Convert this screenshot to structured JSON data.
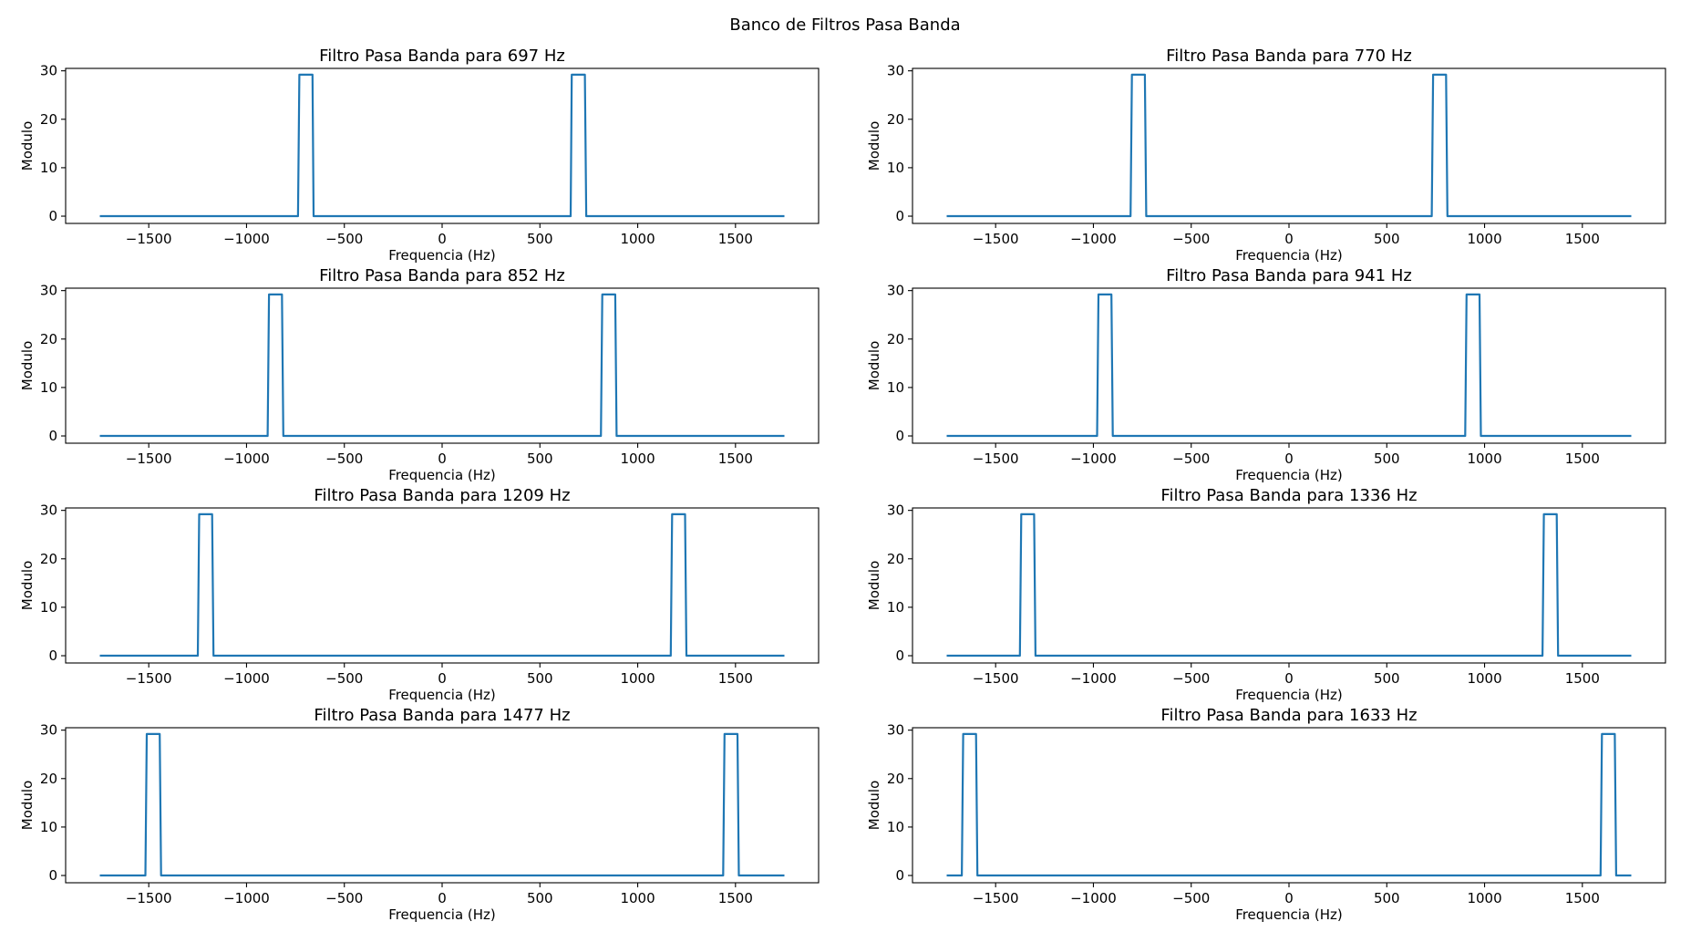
{
  "figure": {
    "suptitle": "Banco de Filtros Pasa Banda",
    "line_color": "#1f77b4"
  },
  "chart_data": [
    {
      "type": "line",
      "title": "Filtro Pasa Banda para 697 Hz",
      "xlabel": "Frequencia (Hz)",
      "ylabel": "Modulo",
      "xlim": [
        -1925,
        1925
      ],
      "ylim": [
        -1.5,
        30.5
      ],
      "xticks": [
        -1500,
        -1000,
        -500,
        0,
        500,
        1000,
        1500
      ],
      "yticks": [
        0,
        10,
        20,
        30
      ],
      "grid": false,
      "x": [
        -1750,
        -737,
        -730,
        -663,
        -657,
        657,
        663,
        730,
        737,
        1750
      ],
      "y": [
        0,
        0,
        29.2,
        29.2,
        0,
        0,
        29.2,
        29.2,
        0,
        0
      ]
    },
    {
      "type": "line",
      "title": "Filtro Pasa Banda para 770 Hz",
      "xlabel": "Frequencia (Hz)",
      "ylabel": "Modulo",
      "xlim": [
        -1925,
        1925
      ],
      "ylim": [
        -1.5,
        30.5
      ],
      "xticks": [
        -1500,
        -1000,
        -500,
        0,
        500,
        1000,
        1500
      ],
      "yticks": [
        0,
        10,
        20,
        30
      ],
      "grid": false,
      "x": [
        -1750,
        -810,
        -803,
        -737,
        -730,
        730,
        737,
        803,
        810,
        1750
      ],
      "y": [
        0,
        0,
        29.2,
        29.2,
        0,
        0,
        29.2,
        29.2,
        0,
        0
      ]
    },
    {
      "type": "line",
      "title": "Filtro Pasa Banda para 852 Hz",
      "xlabel": "Frequencia (Hz)",
      "ylabel": "Modulo",
      "xlim": [
        -1925,
        1925
      ],
      "ylim": [
        -1.5,
        30.5
      ],
      "xticks": [
        -1500,
        -1000,
        -500,
        0,
        500,
        1000,
        1500
      ],
      "yticks": [
        0,
        10,
        20,
        30
      ],
      "grid": false,
      "x": [
        -1750,
        -892,
        -885,
        -819,
        -812,
        812,
        819,
        885,
        892,
        1750
      ],
      "y": [
        0,
        0,
        29.2,
        29.2,
        0,
        0,
        29.2,
        29.2,
        0,
        0
      ]
    },
    {
      "type": "line",
      "title": "Filtro Pasa Banda para 941 Hz",
      "xlabel": "Frequencia (Hz)",
      "ylabel": "Modulo",
      "xlim": [
        -1925,
        1925
      ],
      "ylim": [
        -1.5,
        30.5
      ],
      "xticks": [
        -1500,
        -1000,
        -500,
        0,
        500,
        1000,
        1500
      ],
      "yticks": [
        0,
        10,
        20,
        30
      ],
      "grid": false,
      "x": [
        -1750,
        -981,
        -974,
        -908,
        -901,
        901,
        908,
        974,
        981,
        1750
      ],
      "y": [
        0,
        0,
        29.2,
        29.2,
        0,
        0,
        29.2,
        29.2,
        0,
        0
      ]
    },
    {
      "type": "line",
      "title": "Filtro Pasa Banda para 1209 Hz",
      "xlabel": "Frequencia (Hz)",
      "ylabel": "Modulo",
      "xlim": [
        -1925,
        1925
      ],
      "ylim": [
        -1.5,
        30.5
      ],
      "xticks": [
        -1500,
        -1000,
        -500,
        0,
        500,
        1000,
        1500
      ],
      "yticks": [
        0,
        10,
        20,
        30
      ],
      "grid": false,
      "x": [
        -1750,
        -1249,
        -1242,
        -1176,
        -1169,
        1169,
        1176,
        1242,
        1249,
        1750
      ],
      "y": [
        0,
        0,
        29.2,
        29.2,
        0,
        0,
        29.2,
        29.2,
        0,
        0
      ]
    },
    {
      "type": "line",
      "title": "Filtro Pasa Banda para 1336 Hz",
      "xlabel": "Frequencia (Hz)",
      "ylabel": "Modulo",
      "xlim": [
        -1925,
        1925
      ],
      "ylim": [
        -1.5,
        30.5
      ],
      "xticks": [
        -1500,
        -1000,
        -500,
        0,
        500,
        1000,
        1500
      ],
      "yticks": [
        0,
        10,
        20,
        30
      ],
      "grid": false,
      "x": [
        -1750,
        -1376,
        -1369,
        -1303,
        -1296,
        1296,
        1303,
        1369,
        1376,
        1750
      ],
      "y": [
        0,
        0,
        29.2,
        29.2,
        0,
        0,
        29.2,
        29.2,
        0,
        0
      ]
    },
    {
      "type": "line",
      "title": "Filtro Pasa Banda para 1477 Hz",
      "xlabel": "Frequencia (Hz)",
      "ylabel": "Modulo",
      "xlim": [
        -1925,
        1925
      ],
      "ylim": [
        -1.5,
        30.5
      ],
      "xticks": [
        -1500,
        -1000,
        -500,
        0,
        500,
        1000,
        1500
      ],
      "yticks": [
        0,
        10,
        20,
        30
      ],
      "grid": false,
      "x": [
        -1750,
        -1517,
        -1510,
        -1444,
        -1437,
        1437,
        1444,
        1510,
        1517,
        1750
      ],
      "y": [
        0,
        0,
        29.2,
        29.2,
        0,
        0,
        29.2,
        29.2,
        0,
        0
      ]
    },
    {
      "type": "line",
      "title": "Filtro Pasa Banda para 1633 Hz",
      "xlabel": "Frequencia (Hz)",
      "ylabel": "Modulo",
      "xlim": [
        -1925,
        1925
      ],
      "ylim": [
        -1.5,
        30.5
      ],
      "xticks": [
        -1500,
        -1000,
        -500,
        0,
        500,
        1000,
        1500
      ],
      "yticks": [
        0,
        10,
        20,
        30
      ],
      "grid": false,
      "x": [
        -1750,
        -1673,
        -1666,
        -1600,
        -1593,
        1593,
        1600,
        1666,
        1673,
        1750
      ],
      "y": [
        0,
        0,
        29.2,
        29.2,
        0,
        0,
        29.2,
        29.2,
        0,
        0
      ]
    }
  ]
}
